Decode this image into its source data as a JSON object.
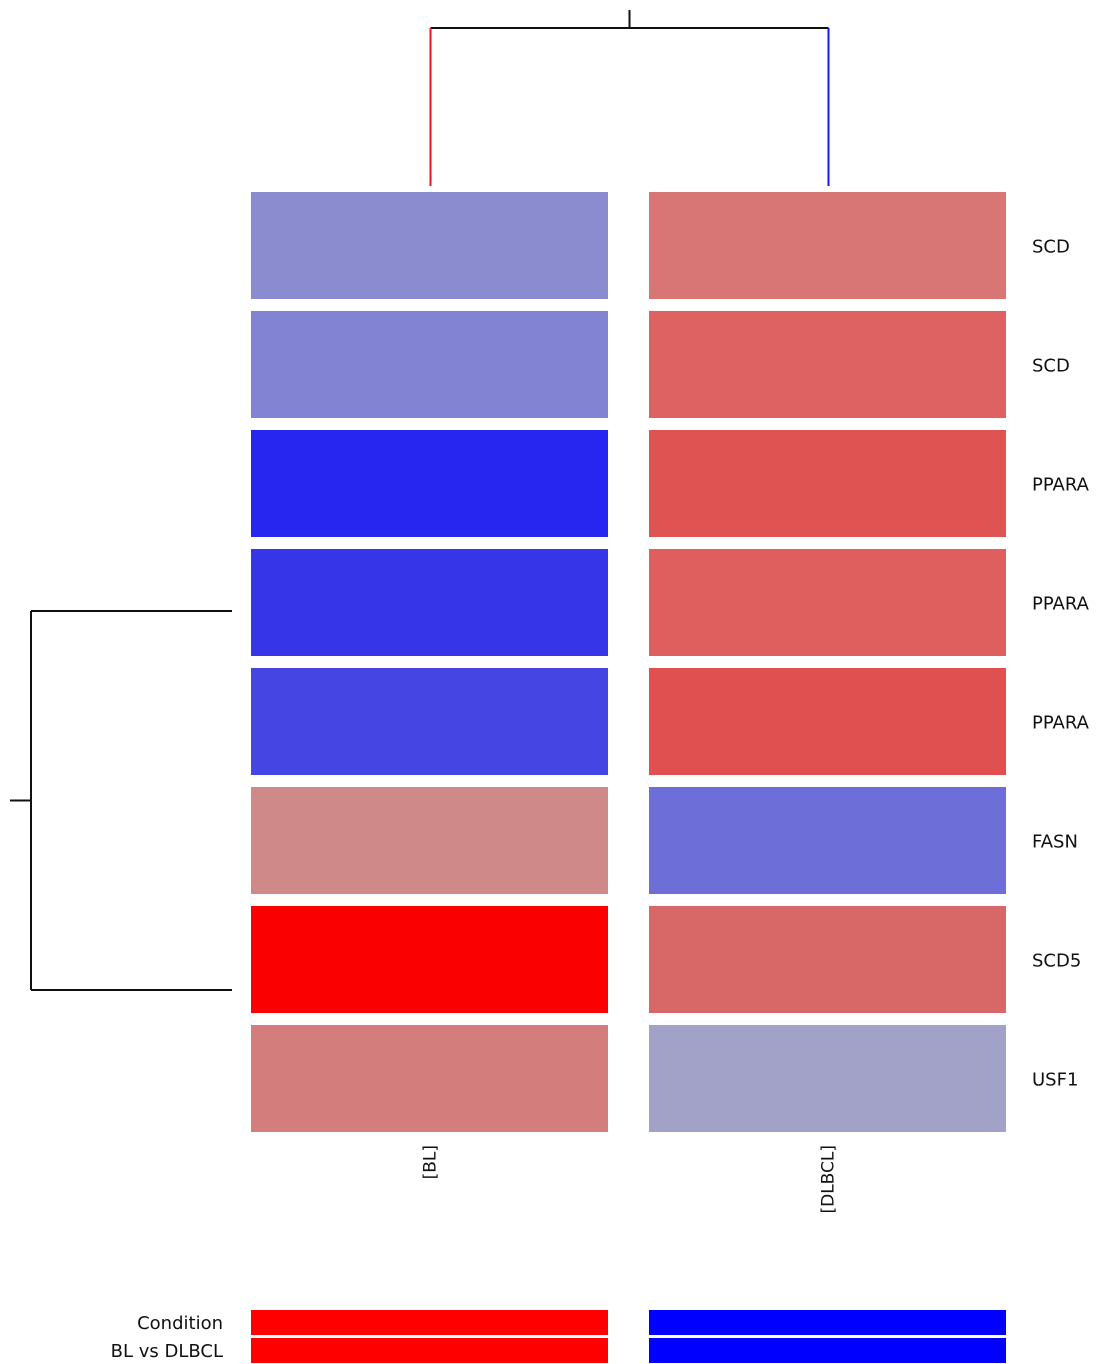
{
  "chart_data": {
    "type": "heatmap",
    "title": "",
    "columns": [
      "[BL]",
      "[DLBCL]"
    ],
    "rows": [
      "SCD",
      "SCD",
      "PPARA",
      "PPARA",
      "PPARA",
      "FASN",
      "SCD5",
      "USF1"
    ],
    "cell_colors": [
      [
        "#8b8cd0",
        "#d87575"
      ],
      [
        "#8383d3",
        "#df6262"
      ],
      [
        "#2626f0",
        "#e05353"
      ],
      [
        "#3636e8",
        "#df5f5f"
      ],
      [
        "#4545e4",
        "#e05050"
      ],
      [
        "#d08989",
        "#6e6ed8"
      ],
      [
        "#fa0000",
        "#d86767"
      ],
      [
        "#d47d7d",
        "#a2a2c8"
      ]
    ],
    "column_dendrogram": {
      "branch_colors": [
        "#e8151d",
        "#1414f5"
      ],
      "line_color": "#111111"
    },
    "row_dendrogram": {
      "line_color": "#111111"
    },
    "annotation": {
      "labels": [
        "Condition",
        "BL vs DLBCL"
      ],
      "colors": [
        "#ff0000",
        "#0000ff"
      ]
    }
  }
}
